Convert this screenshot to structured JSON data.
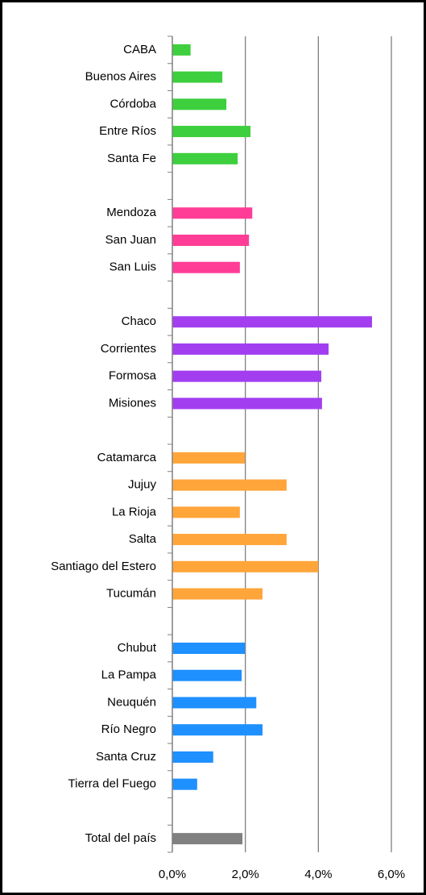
{
  "chart_data": {
    "type": "barh",
    "categories": [
      "CABA",
      "Buenos Aires",
      "Córdoba",
      "Entre Ríos",
      "Santa Fe",
      null,
      "Mendoza",
      "San Juan",
      "San Luis",
      null,
      "Chaco",
      "Corrientes",
      "Formosa",
      "Misiones",
      null,
      "Catamarca",
      "Jujuy",
      "La Rioja",
      "Salta",
      "Santiago del Estero",
      "Tucumán",
      null,
      "Chubut",
      "La Pampa",
      "Neuquén",
      "Río Negro",
      "Santa Cruz",
      "Tierra del Fuego",
      null,
      "Total del país"
    ],
    "values": [
      0.5,
      1.37,
      1.48,
      2.14,
      1.79,
      null,
      2.19,
      2.1,
      1.85,
      null,
      5.47,
      4.28,
      4.08,
      4.1,
      null,
      1.99,
      3.13,
      1.85,
      3.13,
      4.0,
      2.47,
      null,
      1.99,
      1.9,
      2.3,
      2.47,
      1.12,
      0.68,
      null,
      1.92
    ],
    "colors": [
      "#3ecf3e",
      "#3ecf3e",
      "#3ecf3e",
      "#3ecf3e",
      "#3ecf3e",
      null,
      "#ff3d96",
      "#ff3d96",
      "#ff3d96",
      null,
      "#a23ef0",
      "#a23ef0",
      "#a23ef0",
      "#a23ef0",
      null,
      "#ffa53a",
      "#ffa53a",
      "#ffa53a",
      "#ffa53a",
      "#ffa53a",
      "#ffa53a",
      null,
      "#1e90ff",
      "#1e90ff",
      "#1e90ff",
      "#1e90ff",
      "#1e90ff",
      "#1e90ff",
      null,
      "#808080"
    ],
    "xlim": [
      0,
      6
    ],
    "xticks": [
      {
        "value": 0,
        "label": "0,0%"
      },
      {
        "value": 2,
        "label": "2,0%"
      },
      {
        "value": 4,
        "label": "4,0%"
      },
      {
        "value": 6,
        "label": "6,0%"
      }
    ],
    "grid": true
  }
}
